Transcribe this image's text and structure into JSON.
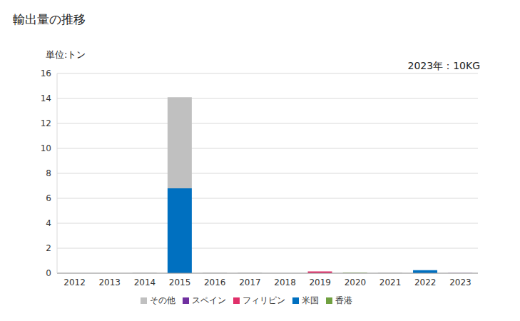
{
  "chart_data": {
    "type": "bar",
    "title": "輸出量の推移",
    "y_label": "単位:トン",
    "annotation": "2023年：10KG",
    "categories": [
      "2012",
      "2013",
      "2014",
      "2015",
      "2016",
      "2017",
      "2018",
      "2019",
      "2020",
      "2021",
      "2022",
      "2023"
    ],
    "series": [
      {
        "name": "米国",
        "color": "#0070c0",
        "values": [
          0,
          0,
          0,
          6.8,
          0,
          0,
          0,
          0,
          0,
          0,
          0.25,
          0
        ]
      },
      {
        "name": "フィリピン",
        "color": "#e0306a",
        "values": [
          0,
          0,
          0,
          0,
          0,
          0,
          0,
          0.15,
          0,
          0,
          0,
          0
        ]
      },
      {
        "name": "香港",
        "color": "#70a040",
        "values": [
          0,
          0,
          0,
          0,
          0,
          0,
          0,
          0,
          0.05,
          0,
          0,
          0
        ]
      },
      {
        "name": "スペイン",
        "color": "#7030a0",
        "values": [
          0,
          0,
          0,
          0,
          0,
          0,
          0,
          0,
          0,
          0,
          0,
          0.01
        ]
      },
      {
        "name": "その他",
        "color": "#c0c0c0",
        "values": [
          0,
          0,
          0.05,
          7.3,
          0.05,
          0.05,
          0,
          0,
          0,
          0.05,
          0,
          0
        ]
      }
    ],
    "ylim": [
      0,
      16
    ],
    "yticks": [
      0,
      2,
      4,
      6,
      8,
      10,
      12,
      14,
      16
    ],
    "grid": true,
    "stacked": true,
    "legend": "bottom"
  }
}
